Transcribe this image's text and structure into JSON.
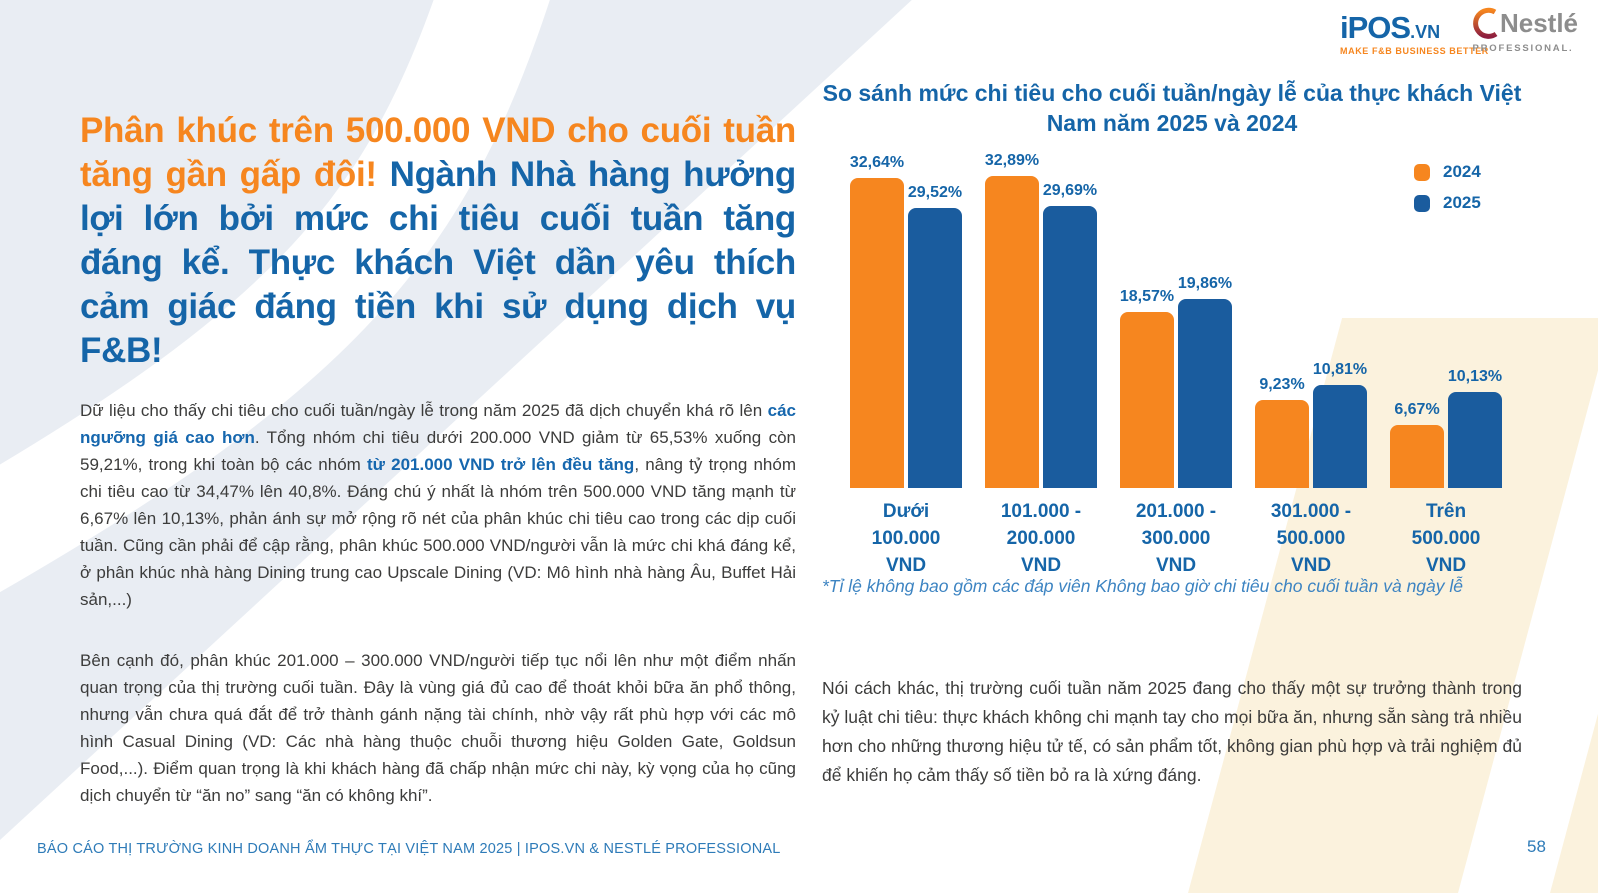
{
  "page": {
    "header": {
      "ipos_name": "iPOS",
      "ipos_tld": ".VN",
      "ipos_tagline": "MAKE F&B BUSINESS BETTER",
      "nestle_name": "Nestlé",
      "nestle_sub": "PROFESSIONAL."
    },
    "headline": {
      "orange": "Phân khúc trên 500.000 VND cho cuối tuần tăng gần gấp đôi! ",
      "blue": "Ngành Nhà hàng hưởng lợi lớn bởi mức chi tiêu cuối tuần tăng đáng kể. Thực khách Việt dần yêu thích cảm giác đáng tiền khi sử dụng dịch vụ F&B!"
    },
    "paragraph1": {
      "s1": "Dữ liệu cho thấy chi tiêu cho cuối tuần/ngày lễ trong năm 2025 đã dịch chuyển khá rõ lên ",
      "b1": "các ngưỡng giá cao hơn",
      "s2": ". Tổng nhóm chi tiêu dưới 200.000 VND giảm từ 65,53% xuống còn 59,21%, trong khi toàn bộ các nhóm ",
      "b2": "từ 201.000 VND trở lên đều tăng",
      "s3": ", nâng tỷ trọng nhóm chi tiêu cao từ 34,47% lên 40,8%. Đáng chú ý nhất là nhóm trên 500.000 VND tăng mạnh từ 6,67% lên 10,13%, phản ánh sự mở rộng rõ nét của phân khúc chi tiêu cao trong các dịp cuối tuần. Cũng cần phải để cập rằng, phân khúc 500.000 VND/người vẫn là mức chi khá đáng kể, ở phân khúc nhà hàng Dining trung cao Upscale Dining (VD: Mô hình nhà hàng Âu, Buffet Hải sản,...)"
    },
    "paragraph2": "Bên cạnh đó, phân khúc 201.000 – 300.000 VND/người tiếp tục nổi lên như một điểm nhấn quan trọng của thị trường cuối tuần. Đây là vùng giá đủ cao để thoát khỏi bữa ăn phổ thông, nhưng vẫn chưa quá đắt để trở thành gánh nặng tài chính, nhờ vậy rất phù hợp với các mô hình Casual Dining (VD: Các nhà hàng thuộc chuỗi thương hiệu Golden Gate, Goldsun Food,...). Điểm quan trọng là khi khách hàng đã chấp nhận mức chi này, kỳ vọng của họ cũng dịch chuyển từ “ăn no” sang “ăn có không khí”.",
    "paragraph3": "Nói cách khác, thị trường cuối tuần năm 2025 đang cho thấy một sự trưởng thành trong kỷ luật chi tiêu: thực khách không chi mạnh tay cho mọi bữa ăn, nhưng sẵn sàng trả nhiều hơn cho những thương hiệu tử tế, có sản phẩm tốt, không gian phù hợp và trải nghiệm đủ để khiến họ cảm thấy số tiền bỏ ra là xứng đáng.",
    "footer": {
      "report": "BÁO CÁO THỊ TRƯỜNG KINH DOANH ẨM THỰC TẠI VIỆT NAM 2025 | IPOS.VN & NESTLÉ PROFESSIONAL",
      "page": "58"
    },
    "colors": {
      "orange": "#F6861F",
      "blue_bar": "#1A5C9E",
      "blue_text": "#1565A8",
      "body_text": "#3C3C3B",
      "footer_blue": "#2E7BB8",
      "cream": "#FBF2DD",
      "gray_panel": "#E9EDF3"
    }
  },
  "chart_data": {
    "type": "bar",
    "title": "So sánh mức chi tiêu cho cuối tuần/ngày lễ của thực khách Việt Nam năm 2025 và 2024",
    "legend_position": "top-right",
    "grid": false,
    "ylim": [
      0,
      35
    ],
    "categories": [
      "Dưới 100.000 VND",
      "101.000 - 200.000 VND",
      "201.000 - 300.000 VND",
      "301.000 - 500.000 VND",
      "Trên 500.000 VND"
    ],
    "category_display": [
      "Dưới\n100.000\nVND",
      "101.000 -\n200.000\nVND",
      "201.000 -\n300.000\nVND",
      "301.000 -\n500.000\nVND",
      "Trên\n500.000\nVND"
    ],
    "legend": [
      {
        "label": "2024",
        "color": "#F6861F"
      },
      {
        "label": "2025",
        "color": "#1A5C9E"
      }
    ],
    "series": [
      {
        "name": "2024",
        "color": "#F6861F",
        "values": [
          32.64,
          32.89,
          18.57,
          9.23,
          6.67
        ],
        "display": [
          "32,64%",
          "32,89%",
          "18,57%",
          "9,23%",
          "6,67%"
        ]
      },
      {
        "name": "2025",
        "color": "#1A5C9E",
        "values": [
          29.52,
          29.69,
          19.86,
          10.81,
          10.13
        ],
        "display": [
          "29,52%",
          "29,69%",
          "19,86%",
          "10,81%",
          "10,13%"
        ]
      }
    ],
    "footnote": "*Tỉ lệ không bao gồm các đáp viên Không bao giờ chi tiêu cho cuối tuần và ngày lễ"
  }
}
